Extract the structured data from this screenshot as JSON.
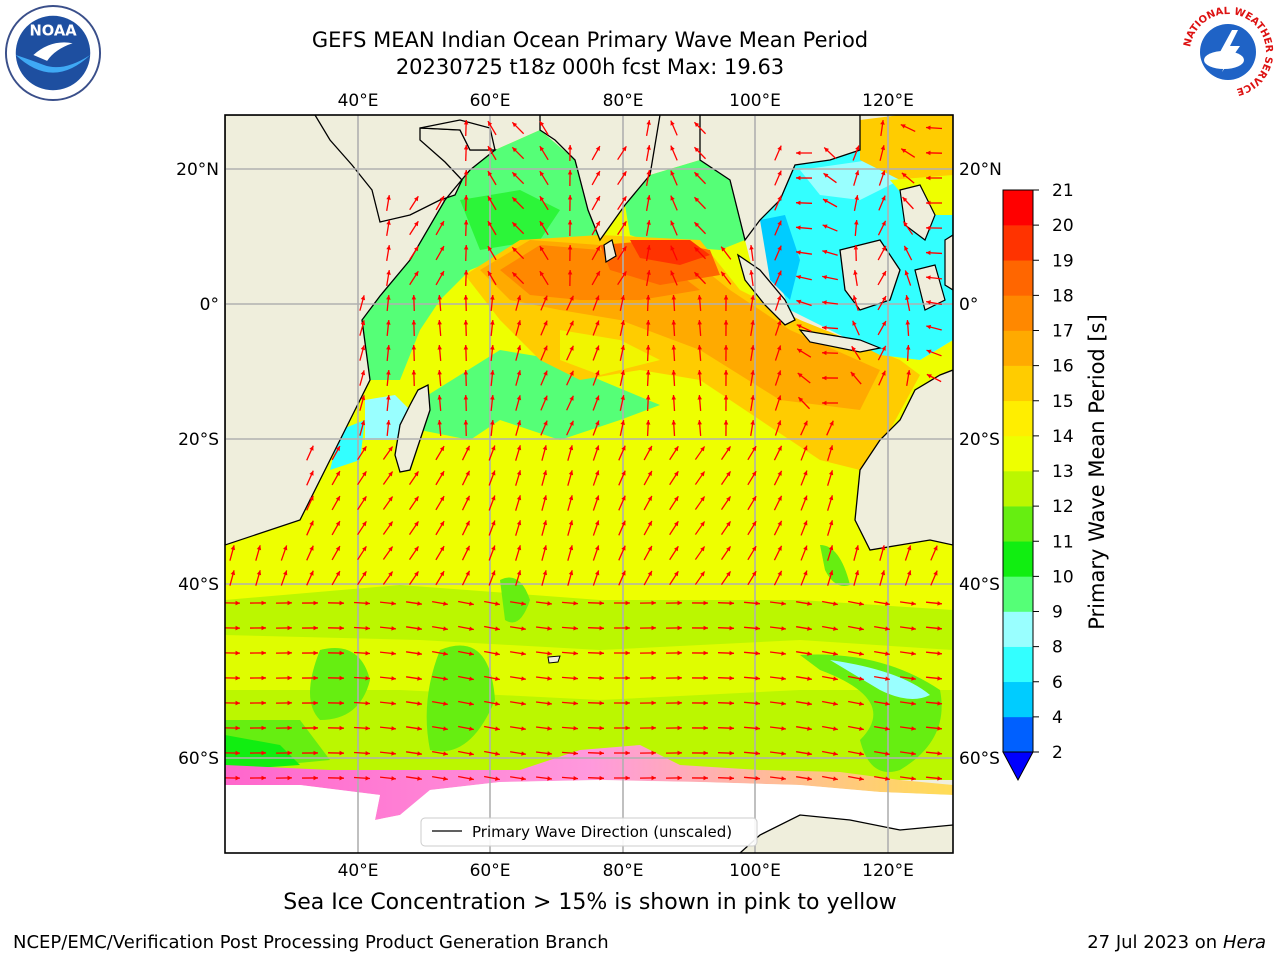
{
  "header": {
    "title_line1": "GEFS MEAN Indian Ocean Primary Wave Mean Period",
    "title_line2": "20230725 t18z 000h fcst   Max: 19.63"
  },
  "logos": {
    "left": {
      "name": "noaa-logo",
      "text": "NOAA"
    },
    "right": {
      "name": "nws-logo",
      "text": "NATIONAL WEATHER SERVICE"
    }
  },
  "map": {
    "lon_range": [
      20,
      130
    ],
    "lat_range": [
      -70,
      28
    ],
    "lon_ticks": [
      "40°E",
      "60°E",
      "80°E",
      "100°E",
      "120°E"
    ],
    "lon_tick_values": [
      40,
      60,
      80,
      100,
      120
    ],
    "lat_ticks": [
      "20°N",
      "0°",
      "20°S",
      "40°S",
      "60°S"
    ],
    "lat_tick_values": [
      20,
      0,
      -20,
      -40,
      -60
    ],
    "grid": true,
    "legend": {
      "label": "Primary Wave Direction (unscaled)",
      "placement": "bottom-center"
    },
    "colors": {
      "land": "#efeedc",
      "arrow": "#ff0000",
      "grid": "#b0b0b0"
    }
  },
  "colorbar": {
    "label": "Primary Wave Mean Period [s]",
    "ticks": [
      "2",
      "4",
      "6",
      "8",
      "9",
      "10",
      "11",
      "12",
      "13",
      "14",
      "15",
      "16",
      "17",
      "18",
      "19",
      "20",
      "21"
    ],
    "tick_values": [
      2,
      4,
      6,
      8,
      9,
      10,
      11,
      12,
      13,
      14,
      15,
      16,
      17,
      18,
      19,
      20,
      21
    ],
    "colors": [
      "#0060ff",
      "#00ccff",
      "#33ffff",
      "#99ffff",
      "#55ff77",
      "#11ee11",
      "#66ee11",
      "#bbf700",
      "#eeff00",
      "#ffee00",
      "#ffcc00",
      "#ffaa00",
      "#ff8800",
      "#ff6600",
      "#ff3300",
      "#ff0000"
    ],
    "under_color": "#0000ff"
  },
  "captions": {
    "sea_ice": "Sea Ice Concentration > 15% is shown in pink to yellow",
    "branch": "NCEP/EMC/Verification Post Processing Product Generation Branch",
    "date": "27 Jul 2023 on ",
    "machine": "Hera"
  }
}
